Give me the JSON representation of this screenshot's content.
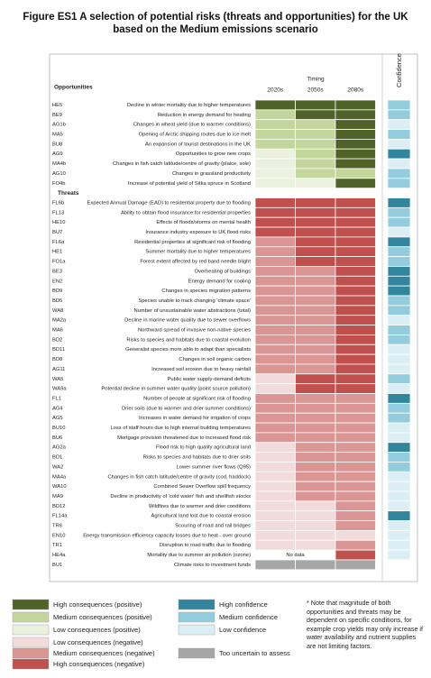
{
  "title": "Figure ES1  A selection of potential risks (threats and opportunities) for the UK based on the Medium emissions scenario",
  "header": {
    "opportunities": "Opportunities",
    "threats": "Threats",
    "timing": "Timing",
    "periods": [
      "2020s",
      "2050s",
      "2080s"
    ],
    "confidence": "Confidence"
  },
  "legend": {
    "consequences": [
      {
        "label": "High consequences (positive)",
        "color": "#4f6228"
      },
      {
        "label": "Medium consequences (positive)",
        "color": "#c3d69b"
      },
      {
        "label": "Low consequences (positive)",
        "color": "#ebf1de"
      },
      {
        "label": "Low consequences (negative)",
        "color": "#f2dcdb"
      },
      {
        "label": "Medium consequences (negative)",
        "color": "#da9694"
      },
      {
        "label": "High consequences (negative)",
        "color": "#c0504d"
      },
      {
        "label": "Too uncertain to assess",
        "color": "#a6a6a6"
      }
    ],
    "confidence": [
      {
        "label": "High confidence",
        "color": "#31859c"
      },
      {
        "label": "Medium confidence",
        "color": "#93cddd"
      },
      {
        "label": "Low confidence",
        "color": "#dbeef4"
      }
    ]
  },
  "opportunities": [
    {
      "code": "HE5",
      "label": "Decline in winter mortality due to higher temperatures",
      "timing": [
        0,
        0,
        0
      ],
      "confidence": 1
    },
    {
      "code": "BE9",
      "label": "Reduction in energy demand for heating",
      "timing": [
        1,
        0,
        0
      ],
      "confidence": 1
    },
    {
      "code": "AG1b",
      "label": "Changes in wheat yield (due to warmer conditions)",
      "timing": [
        1,
        1,
        0
      ],
      "confidence": 2
    },
    {
      "code": "MA5",
      "label": "Opening of Arctic shipping routes due to ice melt",
      "timing": [
        1,
        1,
        0
      ],
      "confidence": 1
    },
    {
      "code": "BU8",
      "label": "An expansion of tourist destinations in the UK",
      "timing": [
        1,
        1,
        0
      ],
      "confidence": 2
    },
    {
      "code": "AG9",
      "label": "Opportunities to grow new crops",
      "timing": [
        2,
        1,
        0
      ],
      "confidence": 0
    },
    {
      "code": "MA4b",
      "label": "Changes in fish catch latitude/centre of gravity (plaice, sole)",
      "timing": [
        2,
        1,
        0
      ],
      "confidence": 2
    },
    {
      "code": "AG10",
      "label": "Changes in grassland productivity",
      "timing": [
        2,
        1,
        1
      ],
      "confidence": 1
    },
    {
      "code": "FO4b",
      "label": "Increase of potential yield of Sitka spruce in Scotland",
      "timing": [
        2,
        2,
        0
      ],
      "confidence": 1
    }
  ],
  "threats": [
    {
      "code": "FL6b",
      "label": "Expected Annual Damage (EAD) to residential property due to flooding",
      "timing": [
        5,
        5,
        5
      ],
      "confidence": 0
    },
    {
      "code": "FL13",
      "label": "Ability to obtain flood insurance for residential properties",
      "timing": [
        5,
        5,
        5
      ],
      "confidence": 1
    },
    {
      "code": "HE10",
      "label": "Effects of floods/storms on mental health",
      "timing": [
        5,
        5,
        5
      ],
      "confidence": 1
    },
    {
      "code": "BU7",
      "label": "Insurance industry exposure to UK flood risks",
      "timing": [
        5,
        5,
        5
      ],
      "confidence": 2
    },
    {
      "code": "FL6a",
      "label": "Residential properties at significant risk of flooding",
      "timing": [
        4,
        5,
        5
      ],
      "confidence": 0
    },
    {
      "code": "HE1",
      "label": "Summer mortality due to higher temperatures",
      "timing": [
        4,
        5,
        5
      ],
      "confidence": 1
    },
    {
      "code": "FO1a",
      "label": "Forest extent affected by red band needle blight",
      "timing": [
        4,
        5,
        5
      ],
      "confidence": 1
    },
    {
      "code": "BE3",
      "label": "Overheating of buildings",
      "timing": [
        4,
        4,
        5
      ],
      "confidence": 0
    },
    {
      "code": "EN2",
      "label": "Energy demand for cooling",
      "timing": [
        4,
        4,
        5
      ],
      "confidence": 0
    },
    {
      "code": "BD9",
      "label": "Changes in species migration patterns",
      "timing": [
        4,
        4,
        5
      ],
      "confidence": 0
    },
    {
      "code": "BD5",
      "label": "Species unable to track changing 'climate space'",
      "timing": [
        4,
        4,
        5
      ],
      "confidence": 1
    },
    {
      "code": "WA8",
      "label": "Number of unsustainable water abstractions (total)",
      "timing": [
        4,
        4,
        5
      ],
      "confidence": 1
    },
    {
      "code": "MA2a",
      "label": "Decline in marine water quality due to sewer overflows",
      "timing": [
        4,
        4,
        5
      ],
      "confidence": 2
    },
    {
      "code": "MA6",
      "label": "Northward spread of invasive non-native species",
      "timing": [
        4,
        4,
        5
      ],
      "confidence": 1
    },
    {
      "code": "BD2",
      "label": "Risks to species and habitats due to coastal evolution",
      "timing": [
        4,
        4,
        5
      ],
      "confidence": 1
    },
    {
      "code": "BD11",
      "label": "Generalist species more able to adapt than specialists",
      "timing": [
        4,
        4,
        5
      ],
      "confidence": 2
    },
    {
      "code": "BD8",
      "label": "Changes in soil organic carbon",
      "timing": [
        4,
        4,
        5
      ],
      "confidence": 2
    },
    {
      "code": "AG11",
      "label": "Increased soil erosion due to heavy rainfall",
      "timing": [
        4,
        4,
        5
      ],
      "confidence": 2
    },
    {
      "code": "WA5",
      "label": "Public water supply-demand deficits",
      "timing": [
        3,
        5,
        5
      ],
      "confidence": 1
    },
    {
      "code": "WA9a",
      "label": "Potential decline in summer water quality (point source pollution)",
      "timing": [
        3,
        5,
        5
      ],
      "confidence": 2
    },
    {
      "code": "FL1",
      "label": "Number of people at significant risk of flooding",
      "timing": [
        4,
        4,
        4
      ],
      "confidence": 0
    },
    {
      "code": "AG4",
      "label": "Drier soils (due to warmer and drier summer conditions)",
      "timing": [
        4,
        4,
        4
      ],
      "confidence": 1
    },
    {
      "code": "AG5",
      "label": "Increases in water demand for irrigation of crops",
      "timing": [
        4,
        4,
        4
      ],
      "confidence": 1
    },
    {
      "code": "BU10",
      "label": "Loss of staff hours due to high internal building temperatures",
      "timing": [
        4,
        4,
        4
      ],
      "confidence": 2
    },
    {
      "code": "BU6",
      "label": "Mortgage provision threatened due to increased flood risk",
      "timing": [
        4,
        4,
        4
      ],
      "confidence": 2
    },
    {
      "code": "AG2a",
      "label": "Flood risk to high quality agricultural land",
      "timing": [
        3,
        4,
        4
      ],
      "confidence": 0
    },
    {
      "code": "BD1",
      "label": "Risks to species and habitats due to drier soils",
      "timing": [
        3,
        4,
        4
      ],
      "confidence": 1
    },
    {
      "code": "WA2",
      "label": "Lower summer river flows (Q95)",
      "timing": [
        3,
        4,
        4
      ],
      "confidence": 1
    },
    {
      "code": "MA4a",
      "label": "Changes in fish catch latitude/centre of gravity (cod, haddock)",
      "timing": [
        3,
        4,
        4
      ],
      "confidence": 2
    },
    {
      "code": "WA10",
      "label": "Combined Sewer Overflow spill frequency",
      "timing": [
        3,
        4,
        4
      ],
      "confidence": 2
    },
    {
      "code": "MA9",
      "label": "Decline in productivity of 'cold water' fish and shellfish stocks",
      "timing": [
        3,
        4,
        4
      ],
      "confidence": 2
    },
    {
      "code": "BD12",
      "label": "Wildfires due to warmer and drier conditions",
      "timing": [
        3,
        3,
        4
      ],
      "confidence": 2
    },
    {
      "code": "FL14a",
      "label": "Agricultural land lost due to coastal erosion",
      "timing": [
        3,
        3,
        4
      ],
      "confidence": 0
    },
    {
      "code": "TR6",
      "label": "Scouring of road and rail bridges",
      "timing": [
        3,
        3,
        4
      ],
      "confidence": 2
    },
    {
      "code": "EN10",
      "label": "Energy transmission efficiency capacity losses due to heat - over ground",
      "timing": [
        3,
        3,
        3
      ],
      "confidence": 2
    },
    {
      "code": "TR1",
      "label": "Disruption to road traffic due to flooding",
      "timing": [
        3,
        3,
        4
      ],
      "confidence": 2
    },
    {
      "code": "HE4a",
      "label": "Mortality due to summer air pollution (ozone)",
      "timing": [
        null,
        null,
        5
      ],
      "note": "No data",
      "confidence": 2
    },
    {
      "code": "BU1",
      "label": "Climate risks to investment funds",
      "timing": [
        6,
        6,
        6
      ],
      "confidence": null
    }
  ],
  "note": "* Note that magnitude of both opportunities and threats may be dependent on specific conditions, for example crop yields may only increase if water availability and nutrient supplies are not limiting factors."
}
